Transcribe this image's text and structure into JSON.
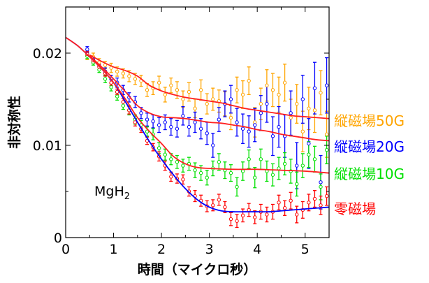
{
  "chart_data": {
    "type": "scatter",
    "title": "",
    "xlabel": "時間（マイクロ秒）",
    "ylabel": "非対称性",
    "xlim": [
      0,
      5.5
    ],
    "ylim": [
      0,
      0.025
    ],
    "xticks": [
      0,
      1,
      2,
      3,
      4,
      5
    ],
    "xtick_labels": [
      "0",
      "1",
      "2",
      "3",
      "4",
      "5"
    ],
    "yticks": [
      0,
      0.01,
      0.02
    ],
    "ytick_labels": [
      "0",
      "0.01",
      "0.02"
    ],
    "grid": false,
    "annotation": {
      "text": "MgH",
      "subscript": "2"
    },
    "x": [
      0.45,
      0.575,
      0.7,
      0.825,
      0.95,
      1.075,
      1.2,
      1.325,
      1.45,
      1.575,
      1.7,
      1.825,
      1.95,
      2.075,
      2.2,
      2.325,
      2.45,
      2.575,
      2.7,
      2.825,
      2.95,
      3.075,
      3.2,
      3.325,
      3.45,
      3.575,
      3.7,
      3.825,
      3.95,
      4.075,
      4.2,
      4.325,
      4.45,
      4.575,
      4.7,
      4.825,
      4.95,
      5.075,
      5.2,
      5.325,
      5.45
    ],
    "series": [
      {
        "name": "縦磁場50G",
        "color": "#ffa500",
        "y": [
          0.0197,
          0.0196,
          0.019,
          0.0187,
          0.0184,
          0.018,
          0.0178,
          0.0175,
          0.0172,
          0.017,
          0.016,
          0.0162,
          0.0168,
          0.0155,
          0.0165,
          0.016,
          0.015,
          0.0158,
          0.014,
          0.016,
          0.0145,
          0.015,
          0.0148,
          0.0145,
          0.013,
          0.016,
          0.0155,
          0.017,
          0.0125,
          0.0145,
          0.0165,
          0.016,
          0.0155,
          0.0168,
          0.013,
          0.0145,
          0.0115,
          0.014,
          0.0138,
          0.0157,
          0.0112
        ],
        "yerr": [
          0.0004,
          0.0004,
          0.0004,
          0.0004,
          0.0005,
          0.0005,
          0.0005,
          0.0006,
          0.0006,
          0.0006,
          0.0007,
          0.0007,
          0.0007,
          0.0008,
          0.0008,
          0.0009,
          0.0009,
          0.001,
          0.001,
          0.0011,
          0.0011,
          0.0012,
          0.0012,
          0.0013,
          0.0013,
          0.0014,
          0.0015,
          0.0015,
          0.0016,
          0.0017,
          0.0017,
          0.0018,
          0.0019,
          0.002,
          0.002,
          0.0021,
          0.0022,
          0.0023,
          0.0024,
          0.0024,
          0.0025
        ],
        "fit_color": "#ff2020",
        "fit_x": [
          0.5,
          0.75,
          1,
          1.25,
          1.5,
          1.75,
          2,
          2.25,
          2.5,
          2.75,
          3,
          3.25,
          3.5,
          3.75,
          4,
          4.25,
          4.5,
          4.75,
          5,
          5.25,
          5.5
        ],
        "fit_y": [
          0.0198,
          0.0191,
          0.0185,
          0.0181,
          0.0175,
          0.0165,
          0.0159,
          0.0155,
          0.0152,
          0.015,
          0.0148,
          0.0146,
          0.0143,
          0.014,
          0.0138,
          0.0136,
          0.0134,
          0.0132,
          0.0131,
          0.013,
          0.0129
        ]
      },
      {
        "name": "縦磁場20G",
        "color": "#0000ff",
        "y": [
          0.0204,
          0.0193,
          0.0186,
          0.018,
          0.0172,
          0.0168,
          0.016,
          0.0152,
          0.0147,
          0.0135,
          0.0128,
          0.0126,
          0.0122,
          0.0125,
          0.012,
          0.0118,
          0.0132,
          0.012,
          0.0125,
          0.0118,
          0.0113,
          0.01,
          0.0128,
          0.0145,
          0.015,
          0.0125,
          0.0118,
          0.0115,
          0.0122,
          0.0135,
          0.0145,
          0.011,
          0.012,
          0.011,
          0.0135,
          0.0078,
          0.015,
          0.0102,
          0.0162,
          0.006,
          0.0165
        ],
        "yerr": [
          0.0003,
          0.0003,
          0.0004,
          0.0004,
          0.0004,
          0.0005,
          0.0005,
          0.0005,
          0.0006,
          0.0006,
          0.0007,
          0.0007,
          0.0008,
          0.0008,
          0.0009,
          0.0009,
          0.001,
          0.001,
          0.0011,
          0.0011,
          0.0012,
          0.0013,
          0.0013,
          0.0014,
          0.0015,
          0.0015,
          0.0016,
          0.0017,
          0.0018,
          0.0019,
          0.002,
          0.0021,
          0.0022,
          0.0023,
          0.0024,
          0.0025,
          0.0026,
          0.0027,
          0.0028,
          0.0029,
          0.003
        ],
        "fit_color": "#ff2020",
        "fit_x": [
          0.5,
          0.75,
          1,
          1.25,
          1.5,
          1.75,
          2,
          2.25,
          2.5,
          2.75,
          3,
          3.25,
          3.5,
          3.75,
          4,
          4.25,
          4.5,
          4.75,
          5,
          5.25,
          5.5
        ],
        "fit_y": [
          0.0197,
          0.0185,
          0.0172,
          0.0158,
          0.0143,
          0.0135,
          0.0131,
          0.013,
          0.0129,
          0.0127,
          0.0125,
          0.0124,
          0.0122,
          0.012,
          0.0117,
          0.0115,
          0.0112,
          0.011,
          0.0108,
          0.0106,
          0.0105
        ]
      },
      {
        "name": "縦磁場10G",
        "color": "#00e000",
        "y": [
          0.0197,
          0.019,
          0.0182,
          0.0172,
          0.0163,
          0.0153,
          0.0143,
          0.0138,
          0.0128,
          0.0122,
          0.0115,
          0.0112,
          0.0097,
          0.009,
          0.0085,
          0.0082,
          0.0078,
          0.008,
          0.0073,
          0.007,
          0.0065,
          0.0075,
          0.0082,
          0.0073,
          0.007,
          0.0055,
          0.0072,
          0.0085,
          0.0065,
          0.0085,
          0.0072,
          0.0068,
          0.0075,
          0.008,
          0.0072,
          0.0058,
          0.0078,
          0.009,
          0.0085,
          0.0055,
          0.0095
        ],
        "yerr": [
          0.0003,
          0.0003,
          0.0003,
          0.0004,
          0.0004,
          0.0004,
          0.0004,
          0.0005,
          0.0005,
          0.0005,
          0.0005,
          0.0006,
          0.0006,
          0.0006,
          0.0006,
          0.0007,
          0.0007,
          0.0007,
          0.0008,
          0.0008,
          0.0008,
          0.0008,
          0.0009,
          0.0009,
          0.0009,
          0.001,
          0.001,
          0.001,
          0.0011,
          0.0011,
          0.0011,
          0.0012,
          0.0012,
          0.0012,
          0.0013,
          0.0013,
          0.0013,
          0.0014,
          0.0014,
          0.0014,
          0.0015
        ],
        "fit_color": "#ff2020",
        "fit_x": [
          0,
          0.25,
          0.5,
          0.75,
          1,
          1.25,
          1.5,
          1.75,
          2,
          2.25,
          2.5,
          2.75,
          3,
          3.5,
          4,
          4.5,
          5,
          5.5
        ],
        "fit_y": [
          0.0217,
          0.0208,
          0.0196,
          0.0183,
          0.0168,
          0.015,
          0.013,
          0.0115,
          0.0102,
          0.0088,
          0.008,
          0.0076,
          0.0075,
          0.0074,
          0.0074,
          0.0073,
          0.0072,
          0.007
        ]
      },
      {
        "name": "零磁場",
        "color": "#ff0000",
        "y": [
          0.0199,
          0.0192,
          0.0185,
          0.0178,
          0.0168,
          0.0158,
          0.0147,
          0.0138,
          0.0125,
          0.0118,
          0.0105,
          0.0098,
          0.0088,
          0.0078,
          0.0066,
          0.0064,
          0.0063,
          0.005,
          0.0045,
          0.004,
          0.0034,
          0.0035,
          0.0041,
          0.0033,
          0.002,
          0.0018,
          0.0024,
          0.003,
          0.0022,
          0.0028,
          0.0025,
          0.0028,
          0.0038,
          0.0032,
          0.004,
          0.0025,
          0.003,
          0.0038,
          0.0042,
          0.0035,
          0.0045
        ],
        "yerr": [
          0.0003,
          0.0003,
          0.0003,
          0.0003,
          0.0003,
          0.0003,
          0.0004,
          0.0004,
          0.0004,
          0.0004,
          0.0004,
          0.0004,
          0.0005,
          0.0005,
          0.0005,
          0.0005,
          0.0005,
          0.0005,
          0.0006,
          0.0006,
          0.0006,
          0.0006,
          0.0006,
          0.0006,
          0.0007,
          0.0007,
          0.0007,
          0.0007,
          0.0007,
          0.0008,
          0.0008,
          0.0008,
          0.0008,
          0.0008,
          0.0009,
          0.0009,
          0.0009,
          0.0009,
          0.0009,
          0.001,
          0.001
        ],
        "fit_color": "#0000ff",
        "fit_x": [
          0,
          0.25,
          0.5,
          0.75,
          1,
          1.25,
          1.5,
          1.75,
          2,
          2.25,
          2.5,
          2.75,
          3,
          3.25,
          3.5,
          3.75,
          4,
          4.25,
          4.5,
          4.75,
          5,
          5.25,
          5.5
        ],
        "fit_y": [
          0.0217,
          0.0208,
          0.0196,
          0.0183,
          0.0168,
          0.0147,
          0.0125,
          0.0104,
          0.0085,
          0.0068,
          0.0053,
          0.0041,
          0.0033,
          0.0029,
          0.0028,
          0.0028,
          0.0028,
          0.0028,
          0.0029,
          0.003,
          0.0031,
          0.0032,
          0.0033
        ]
      }
    ]
  }
}
